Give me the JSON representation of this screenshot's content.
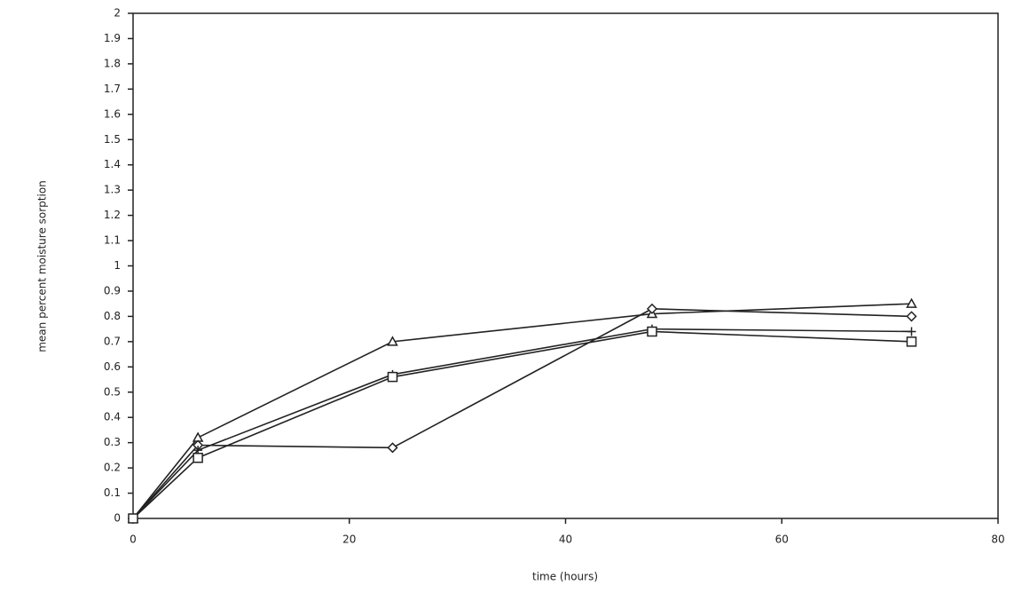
{
  "chart_data": {
    "type": "line",
    "x_label": "time (hours)",
    "y_label": "mean percent moisture sorption",
    "x": [
      0,
      6,
      24,
      48,
      72
    ],
    "series": [
      {
        "marker": "triangle",
        "color": "#222222",
        "values": [
          0,
          0.32,
          0.7,
          0.81,
          0.85
        ]
      },
      {
        "marker": "diamond",
        "color": "#222222",
        "values": [
          0,
          0.29,
          0.28,
          0.83,
          0.8
        ]
      },
      {
        "marker": "plus",
        "color": "#222222",
        "values": [
          0,
          0.27,
          0.57,
          0.75,
          0.74
        ]
      },
      {
        "marker": "square",
        "color": "#222222",
        "values": [
          0,
          0.24,
          0.56,
          0.74,
          0.7
        ]
      }
    ],
    "xlim": [
      0,
      80
    ],
    "xticks": [
      0,
      20,
      40,
      60,
      80
    ],
    "ylim": [
      0,
      2
    ],
    "yticks": [
      0,
      0.1,
      0.2,
      0.3,
      0.4,
      0.5,
      0.6,
      0.7,
      0.8,
      0.9,
      1,
      1.1,
      1.2,
      1.3,
      1.4,
      1.5,
      1.6,
      1.7,
      1.8,
      1.9,
      2
    ]
  }
}
